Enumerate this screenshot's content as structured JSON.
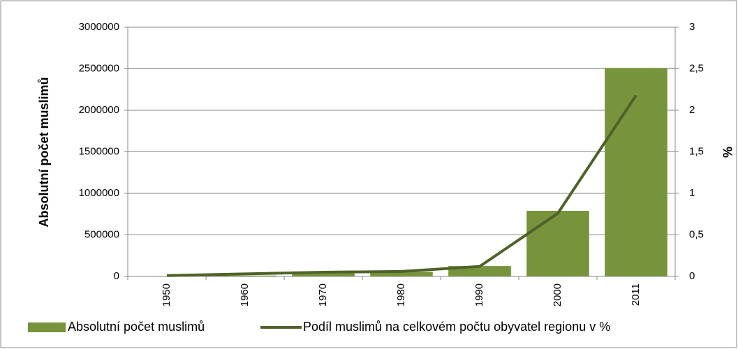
{
  "chart_data": {
    "type": "bar-line",
    "categories": [
      "1950",
      "1960",
      "1970",
      "1980",
      "1990",
      "2000",
      "2011"
    ],
    "series": [
      {
        "name": "Absolutní počet muslimů",
        "type": "bar",
        "color": "#77933c",
        "values": [
          2000,
          10000,
          40000,
          55000,
          125000,
          790000,
          2510000
        ]
      },
      {
        "name": "Podíl muslimů na celkovém počtu obyvatel regionu v %",
        "type": "line",
        "axis": "y2",
        "color": "#4f6228",
        "values": [
          0.01,
          0.03,
          0.05,
          0.06,
          0.12,
          0.76,
          2.18
        ]
      }
    ],
    "ylabel": "Absolutní počet muslimů",
    "y2label": "%",
    "ylim": [
      0,
      3000000
    ],
    "yticks": [
      0,
      500000,
      1000000,
      1500000,
      2000000,
      2500000,
      3000000
    ],
    "y2lim": [
      0,
      3
    ],
    "y2ticks": [
      0,
      {
        "value": 0.5,
        "label": "0,5"
      },
      1,
      {
        "value": 1.5,
        "label": "1,5"
      },
      2,
      {
        "value": 2.5,
        "label": "2,5"
      },
      3
    ],
    "grid": true,
    "legend": "bottom"
  }
}
